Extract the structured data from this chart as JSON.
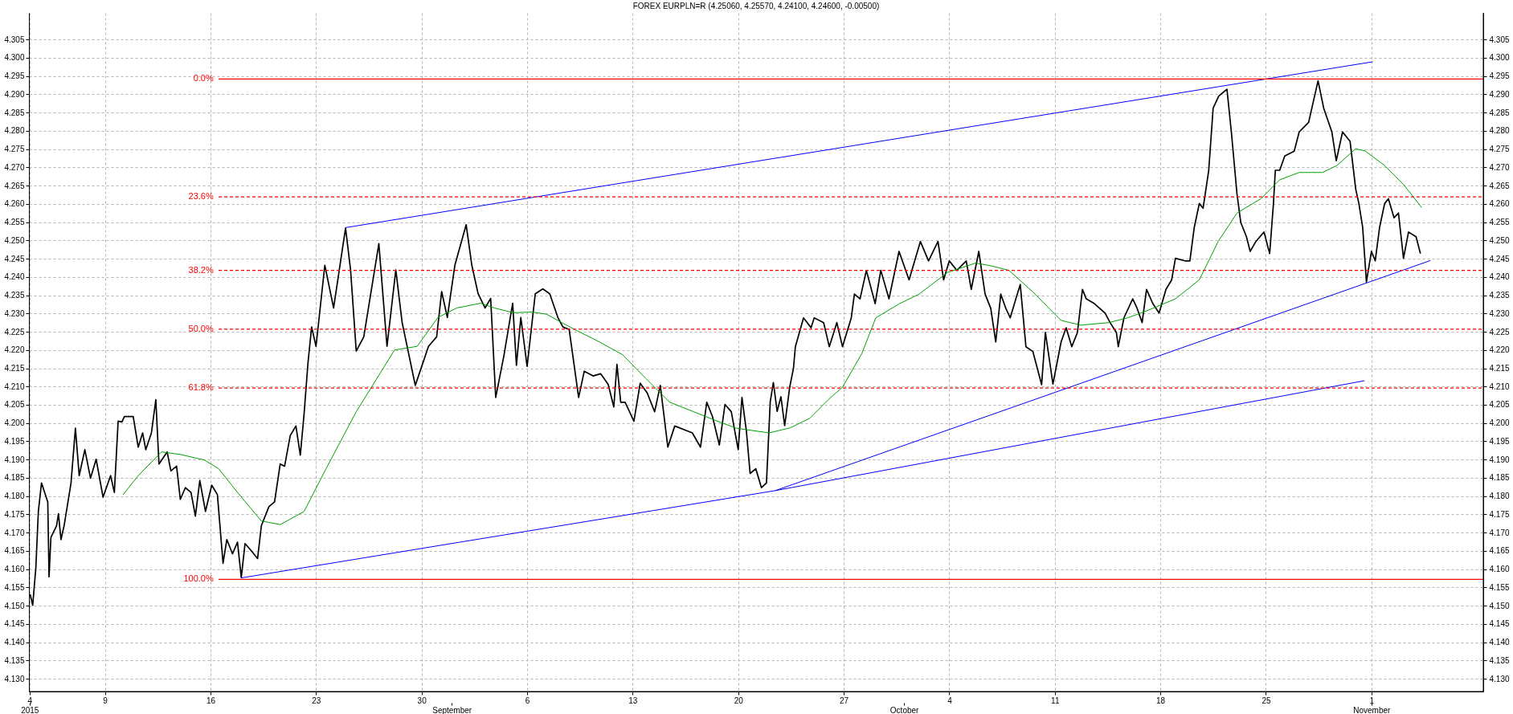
{
  "chart_data": {
    "type": "line",
    "title": "FOREX EURPLN=R (4.25060, 4.25570, 4.24100, 4.24600, -0.00500)",
    "xlim": [
      "2015-08-03T23:00",
      "2015-11-08T10:00"
    ],
    "xticks": [
      {
        "value": "2015-08-04T00:00",
        "label": "4"
      },
      {
        "value": "2015-08-09T00:00",
        "label": "9"
      },
      {
        "value": "2015-08-16T00:00",
        "label": "16"
      },
      {
        "value": "2015-08-23T00:00",
        "label": "23"
      },
      {
        "value": "2015-08-30T00:00",
        "label": "30"
      },
      {
        "value": "2015-09-06T00:00",
        "label": "6"
      },
      {
        "value": "2015-09-13T00:00",
        "label": "13"
      },
      {
        "value": "2015-09-20T00:00",
        "label": "20"
      },
      {
        "value": "2015-09-27T00:00",
        "label": "27"
      },
      {
        "value": "2015-10-04T00:00",
        "label": "4"
      },
      {
        "value": "2015-10-11T00:00",
        "label": "11"
      },
      {
        "value": "2015-10-18T00:00",
        "label": "18"
      },
      {
        "value": "2015-10-25T00:00",
        "label": "25"
      },
      {
        "value": "2015-11-01T00:00",
        "label": "1"
      }
    ],
    "x2lim": [
      "2015-08-03T23:00",
      "2015-11-08T10:00"
    ],
    "x2ticks": [
      {
        "value": "2015-08-04T00:00",
        "label": "2015"
      },
      {
        "value": "2015-09-01T00:00",
        "label": "September"
      },
      {
        "value": "2015-10-01T00:00",
        "label": "October"
      },
      {
        "value": "2015-11-01T00:00",
        "label": "November"
      }
    ],
    "ylim": [
      4.1265,
      4.3123
    ],
    "yticks": [
      {
        "value": 4.13,
        "label": "4.130"
      },
      {
        "value": 4.135,
        "label": "4.135"
      },
      {
        "value": 4.14,
        "label": "4.140"
      },
      {
        "value": 4.145,
        "label": "4.145"
      },
      {
        "value": 4.15,
        "label": "4.150"
      },
      {
        "value": 4.155,
        "label": "4.155"
      },
      {
        "value": 4.16,
        "label": "4.160"
      },
      {
        "value": 4.165,
        "label": "4.165"
      },
      {
        "value": 4.17,
        "label": "4.170"
      },
      {
        "value": 4.175,
        "label": "4.175"
      },
      {
        "value": 4.18,
        "label": "4.180"
      },
      {
        "value": 4.185,
        "label": "4.185"
      },
      {
        "value": 4.19,
        "label": "4.190"
      },
      {
        "value": 4.195,
        "label": "4.195"
      },
      {
        "value": 4.2,
        "label": "4.200"
      },
      {
        "value": 4.205,
        "label": "4.205"
      },
      {
        "value": 4.21,
        "label": "4.210"
      },
      {
        "value": 4.215,
        "label": "4.215"
      },
      {
        "value": 4.22,
        "label": "4.220"
      },
      {
        "value": 4.225,
        "label": "4.225"
      },
      {
        "value": 4.23,
        "label": "4.230"
      },
      {
        "value": 4.235,
        "label": "4.235"
      },
      {
        "value": 4.24,
        "label": "4.240"
      },
      {
        "value": 4.245,
        "label": "4.245"
      },
      {
        "value": 4.25,
        "label": "4.250"
      },
      {
        "value": 4.255,
        "label": "4.255"
      },
      {
        "value": 4.26,
        "label": "4.260"
      },
      {
        "value": 4.265,
        "label": "4.265"
      },
      {
        "value": 4.27,
        "label": "4.270"
      },
      {
        "value": 4.275,
        "label": "4.275"
      },
      {
        "value": 4.28,
        "label": "4.280"
      },
      {
        "value": 4.285,
        "label": "4.285"
      },
      {
        "value": 4.29,
        "label": "4.290"
      },
      {
        "value": 4.295,
        "label": "4.295"
      },
      {
        "value": 4.3,
        "label": "4.300"
      },
      {
        "value": 4.305,
        "label": "4.305"
      }
    ],
    "y2lim": [
      4.1265,
      4.3123
    ],
    "y2ticks": [
      {
        "value": 4.13,
        "label": "4.130"
      },
      {
        "value": 4.135,
        "label": "4.135"
      },
      {
        "value": 4.14,
        "label": "4.140"
      },
      {
        "value": 4.145,
        "label": "4.145"
      },
      {
        "value": 4.15,
        "label": "4.150"
      },
      {
        "value": 4.155,
        "label": "4.155"
      },
      {
        "value": 4.16,
        "label": "4.160"
      },
      {
        "value": 4.165,
        "label": "4.165"
      },
      {
        "value": 4.17,
        "label": "4.170"
      },
      {
        "value": 4.175,
        "label": "4.175"
      },
      {
        "value": 4.18,
        "label": "4.180"
      },
      {
        "value": 4.185,
        "label": "4.185"
      },
      {
        "value": 4.19,
        "label": "4.190"
      },
      {
        "value": 4.195,
        "label": "4.195"
      },
      {
        "value": 4.2,
        "label": "4.200"
      },
      {
        "value": 4.205,
        "label": "4.205"
      },
      {
        "value": 4.21,
        "label": "4.210"
      },
      {
        "value": 4.215,
        "label": "4.215"
      },
      {
        "value": 4.22,
        "label": "4.220"
      },
      {
        "value": 4.225,
        "label": "4.225"
      },
      {
        "value": 4.23,
        "label": "4.230"
      },
      {
        "value": 4.235,
        "label": "4.235"
      },
      {
        "value": 4.24,
        "label": "4.240"
      },
      {
        "value": 4.245,
        "label": "4.245"
      },
      {
        "value": 4.25,
        "label": "4.250"
      },
      {
        "value": 4.255,
        "label": "4.255"
      },
      {
        "value": 4.26,
        "label": "4.260"
      },
      {
        "value": 4.265,
        "label": "4.265"
      },
      {
        "value": 4.27,
        "label": "4.270"
      },
      {
        "value": 4.275,
        "label": "4.275"
      },
      {
        "value": 4.28,
        "label": "4.280"
      },
      {
        "value": 4.285,
        "label": "4.285"
      },
      {
        "value": 4.29,
        "label": "4.290"
      },
      {
        "value": 4.295,
        "label": "4.295"
      },
      {
        "value": 4.3,
        "label": "4.300"
      },
      {
        "value": 4.305,
        "label": "4.305"
      }
    ],
    "grid": true,
    "series": [
      {
        "type": "line",
        "color": "#000000",
        "x": [
          "2015-08-04T01:00",
          "2015-08-04T05:00",
          "2015-08-04T10:00",
          "2015-08-04T14:00",
          "2015-08-04T19:00",
          "2015-08-05T05:00",
          "2015-08-05T07:00",
          "2015-08-05T10:00",
          "2015-08-05T19:00",
          "2015-08-05T22:00",
          "2015-08-06T02:00",
          "2015-08-06T07:00",
          "2015-08-06T18:00",
          "2015-08-07T01:00",
          "2015-08-07T07:00",
          "2015-08-07T16:00",
          "2015-08-08T01:00",
          "2015-08-08T10:00",
          "2015-08-08T21:00",
          "2015-08-09T09:00",
          "2015-08-09T15:00",
          "2015-08-09T21:00",
          "2015-08-10T03:00",
          "2015-08-10T07:00",
          "2015-08-10T21:00",
          "2015-08-11T05:00",
          "2015-08-11T12:00",
          "2015-08-11T17:00",
          "2015-08-12T02:00",
          "2015-08-12T09:00",
          "2015-08-12T14:00",
          "2015-08-13T03:00",
          "2015-08-13T09:00",
          "2015-08-13T18:00",
          "2015-08-14T00:00",
          "2015-08-14T08:00",
          "2015-08-14T17:00",
          "2015-08-15T00:00",
          "2015-08-15T07:00",
          "2015-08-15T16:00",
          "2015-08-16T02:00",
          "2015-08-16T11:00",
          "2015-08-16T20:00",
          "2015-08-17T02:00",
          "2015-08-17T11:00",
          "2015-08-17T19:00",
          "2015-08-18T01:00",
          "2015-08-18T07:00",
          "2015-08-18T18:00",
          "2015-08-19T03:00",
          "2015-08-19T09:00",
          "2015-08-19T21:00",
          "2015-08-20T06:00",
          "2015-08-20T15:00",
          "2015-08-20T22:00",
          "2015-08-21T07:00",
          "2015-08-21T16:00",
          "2015-08-21T23:00",
          "2015-08-22T05:00",
          "2015-08-22T11:00",
          "2015-08-22T17:00",
          "2015-08-23T00:00",
          "2015-08-23T14:00",
          "2015-08-24T04:00",
          "2015-08-24T23:00",
          "2015-08-25T07:00",
          "2015-08-25T16:00",
          "2015-08-26T04:00",
          "2015-08-27T04:00",
          "2015-08-27T17:00",
          "2015-08-28T07:00",
          "2015-08-28T17:00",
          "2015-08-29T14:00",
          "2015-08-30T11:00",
          "2015-08-31T00:00",
          "2015-08-31T08:00",
          "2015-08-31T17:00",
          "2015-09-01T05:00",
          "2015-09-01T23:00",
          "2015-09-02T08:00",
          "2015-09-02T18:00",
          "2015-09-03T05:00",
          "2015-09-03T14:00",
          "2015-09-03T22:00",
          "2015-09-04T11:00",
          "2015-09-05T01:00",
          "2015-09-05T07:00",
          "2015-09-05T14:00",
          "2015-09-06T00:00",
          "2015-09-06T13:00",
          "2015-09-07T01:00",
          "2015-09-07T12:00",
          "2015-09-08T01:00",
          "2015-09-08T09:00",
          "2015-09-08T19:00",
          "2015-09-09T10:00",
          "2015-09-09T19:00",
          "2015-09-10T09:00",
          "2015-09-10T21:00",
          "2015-09-11T09:00",
          "2015-09-11T18:00",
          "2015-09-11T23:00",
          "2015-09-12T05:00",
          "2015-09-12T12:00",
          "2015-09-13T02:00",
          "2015-09-13T12:00",
          "2015-09-13T23:00",
          "2015-09-14T11:00",
          "2015-09-14T20:00",
          "2015-09-15T08:00",
          "2015-09-15T19:00",
          "2015-09-16T14:00",
          "2015-09-16T23:00",
          "2015-09-17T12:00",
          "2015-09-17T22:00",
          "2015-09-18T07:00",
          "2015-09-18T18:00",
          "2015-09-19T03:00",
          "2015-09-19T13:00",
          "2015-09-20T00:00",
          "2015-09-20T06:00",
          "2015-09-20T13:00",
          "2015-09-20T19:00",
          "2015-09-21T04:00",
          "2015-09-21T13:00",
          "2015-09-21T21:00",
          "2015-09-22T03:00",
          "2015-09-22T08:00",
          "2015-09-22T14:00",
          "2015-09-22T20:00",
          "2015-09-23T02:00",
          "2015-09-23T10:00",
          "2015-09-23T16:00",
          "2015-09-23T19:00",
          "2015-09-24T08:00",
          "2015-09-24T20:00",
          "2015-09-25T01:00",
          "2015-09-25T16:00",
          "2015-09-26T01:00",
          "2015-09-26T13:00",
          "2015-09-26T22:00",
          "2015-09-27T12:00",
          "2015-09-27T17:00",
          "2015-09-28T02:00",
          "2015-09-28T12:00",
          "2015-09-29T02:00",
          "2015-09-29T11:00",
          "2015-09-30T00:00",
          "2015-09-30T16:00",
          "2015-10-01T08:00",
          "2015-10-02T02:00",
          "2015-10-02T15:00",
          "2015-10-03T06:00",
          "2015-10-03T15:00",
          "2015-10-04T00:00",
          "2015-10-04T12:00",
          "2015-10-05T03:00",
          "2015-10-05T11:00",
          "2015-10-05T23:00",
          "2015-10-06T09:00",
          "2015-10-06T18:00",
          "2015-10-07T02:00",
          "2015-10-07T10:00",
          "2015-10-07T18:00",
          "2015-10-08T01:00",
          "2015-10-08T10:00",
          "2015-10-08T17:00",
          "2015-10-09T02:00",
          "2015-10-09T13:00",
          "2015-10-10T03:00",
          "2015-10-10T09:00",
          "2015-10-10T21:00",
          "2015-10-11T10:00",
          "2015-10-11T18:00",
          "2015-10-12T03:00",
          "2015-10-12T12:00",
          "2015-10-12T20:00",
          "2015-10-13T02:00",
          "2015-10-13T15:00",
          "2015-10-14T08:00",
          "2015-10-14T16:00",
          "2015-10-15T02:00",
          "2015-10-15T05:00",
          "2015-10-15T14:00",
          "2015-10-16T04:00",
          "2015-10-16T11:00",
          "2015-10-16T19:00",
          "2015-10-17T02:00",
          "2015-10-17T12:00",
          "2015-10-17T22:00",
          "2015-10-18T09:00",
          "2015-10-18T18:00",
          "2015-10-19T00:00",
          "2015-10-19T15:00",
          "2015-10-19T23:00",
          "2015-10-20T06:00",
          "2015-10-20T14:00",
          "2015-10-20T20:00",
          "2015-10-21T05:00",
          "2015-10-21T12:00",
          "2015-10-21T21:00",
          "2015-10-22T10:00",
          "2015-10-22T17:00",
          "2015-10-23T02:00",
          "2015-10-23T08:00",
          "2015-10-23T17:00",
          "2015-10-23T23:00",
          "2015-10-24T08:00",
          "2015-10-24T21:00",
          "2015-10-25T06:00",
          "2015-10-25T12:00",
          "2015-10-25T15:00",
          "2015-10-25T22:00",
          "2015-10-26T06:00",
          "2015-10-26T21:00",
          "2015-10-27T05:00",
          "2015-10-27T20:00",
          "2015-10-28T11:00",
          "2015-10-28T20:00",
          "2015-10-29T09:00",
          "2015-10-29T16:00",
          "2015-10-30T02:00",
          "2015-10-30T14:00",
          "2015-10-30T23:00",
          "2015-10-31T04:00",
          "2015-10-31T10:00",
          "2015-10-31T16:00",
          "2015-11-01T00:00",
          "2015-11-01T06:00",
          "2015-11-01T13:00",
          "2015-11-01T21:00",
          "2015-11-02T03:00",
          "2015-11-02T12:00",
          "2015-11-02T19:00",
          "2015-11-03T03:00",
          "2015-11-03T11:00",
          "2015-11-03T23:00",
          "2015-11-04T06:00"
        ],
        "values": [
          4.1531,
          4.1501,
          4.1603,
          4.1758,
          4.1836,
          4.1784,
          4.1579,
          4.1687,
          4.1719,
          4.1752,
          4.1681,
          4.1719,
          4.1836,
          4.1986,
          4.1856,
          4.1927,
          4.1849,
          4.1901,
          4.1797,
          4.1856,
          4.181,
          4.2005,
          4.2003,
          4.2018,
          4.2018,
          4.1934,
          4.1973,
          4.1927,
          4.1973,
          4.2064,
          4.1888,
          4.1921,
          4.1869,
          4.1882,
          4.1791,
          4.1823,
          4.181,
          4.1745,
          4.1843,
          4.1758,
          4.183,
          4.1804,
          4.1616,
          4.1681,
          4.1642,
          4.1674,
          4.1577,
          4.167,
          4.1648,
          4.1629,
          4.1719,
          4.1771,
          4.1784,
          4.1888,
          4.1882,
          4.1966,
          4.1992,
          4.1912,
          4.2025,
          4.2161,
          4.2263,
          4.221,
          4.2432,
          4.2315,
          4.2534,
          4.2419,
          4.2197,
          4.2236,
          4.2491,
          4.221,
          4.2419,
          4.2276,
          4.2103,
          4.221,
          4.2236,
          4.236,
          4.2289,
          4.2432,
          4.2543,
          4.2432,
          4.2354,
          4.2315,
          4.2341,
          4.207,
          4.2184,
          4.2328,
          4.2158,
          4.2289,
          4.2155,
          4.2354,
          4.2367,
          4.2354,
          4.2289,
          4.2263,
          4.2256,
          4.207,
          4.2142,
          4.2129,
          4.2135,
          4.2106,
          4.2044,
          4.2161,
          4.2057,
          4.2057,
          4.2005,
          4.2109,
          4.2083,
          4.2031,
          4.2103,
          4.1934,
          4.1992,
          4.1979,
          4.1973,
          4.1934,
          4.2057,
          4.2018,
          4.194,
          4.2051,
          4.2031,
          4.1927,
          4.207,
          4.1979,
          4.1862,
          4.1875,
          4.1823,
          4.1836,
          4.2058,
          4.2111,
          4.2032,
          4.2072,
          4.1993,
          4.2098,
          4.215,
          4.2209,
          4.2288,
          4.2261,
          4.2288,
          4.2275,
          4.2209,
          4.2275,
          4.2209,
          4.2288,
          4.2353,
          4.234,
          4.2418,
          4.2327,
          4.2418,
          4.234,
          4.247,
          4.2392,
          4.2497,
          4.2444,
          4.2497,
          4.2392,
          4.2444,
          4.2418,
          4.2444,
          4.2366,
          4.247,
          4.2353,
          4.2314,
          4.2222,
          4.2353,
          4.2314,
          4.2288,
          4.234,
          4.2379,
          4.2209,
          4.2196,
          4.2105,
          4.2248,
          4.2107,
          4.2222,
          4.2261,
          4.2209,
          4.2248,
          4.2366,
          4.234,
          4.2327,
          4.2301,
          4.2275,
          4.2248,
          4.2209,
          4.2288,
          4.234,
          4.2314,
          4.2275,
          4.2366,
          4.2327,
          4.2301,
          4.2366,
          4.2392,
          4.2451,
          4.2444,
          4.2444,
          4.2536,
          4.2601,
          4.2588,
          4.2692,
          4.2862,
          4.2895,
          4.2914,
          4.2797,
          4.2627,
          4.2549,
          4.251,
          4.247,
          4.2497,
          4.2523,
          4.2464,
          4.2601,
          4.2692,
          4.2692,
          4.2731,
          4.2744,
          4.2797,
          4.2823,
          4.2937,
          4.2862,
          4.2797,
          4.2718,
          4.2797,
          4.2771,
          4.264,
          4.2601,
          4.2536,
          4.2386,
          4.247,
          4.2444,
          4.2536,
          4.2601,
          4.2614,
          4.2562,
          4.2575,
          4.2451,
          4.2523,
          4.251,
          4.2464
        ]
      },
      {
        "type": "line",
        "color": "#00a000",
        "x": [
          "2015-08-10T05:00",
          "2015-08-11T05:00",
          "2015-08-12T18:00",
          "2015-08-14T00:00",
          "2015-08-15T14:00",
          "2015-08-16T13:00",
          "2015-08-17T19:00",
          "2015-08-19T09:00",
          "2015-08-20T15:00",
          "2015-08-22T05:00",
          "2015-08-23T16:00",
          "2015-08-25T16:00",
          "2015-08-28T05:00",
          "2015-08-29T17:00",
          "2015-08-31T02:00",
          "2015-09-01T08:00",
          "2015-09-02T22:00",
          "2015-09-03T20:00",
          "2015-09-05T02:00",
          "2015-09-06T08:00",
          "2015-09-07T07:00",
          "2015-09-08T06:00",
          "2015-09-09T04:00",
          "2015-09-10T18:00",
          "2015-09-12T08:00",
          "2015-09-13T21:00",
          "2015-09-15T11:00",
          "2015-09-17T01:00",
          "2015-09-18T15:00",
          "2015-09-19T21:00",
          "2015-09-22T01:00",
          "2015-09-23T11:00",
          "2015-09-24T18:00",
          "2015-09-26T00:00",
          "2015-09-26T22:00",
          "2015-09-28T05:00",
          "2015-09-29T03:00",
          "2015-09-30T17:00",
          "2015-10-02T00:00",
          "2015-10-03T21:00",
          "2015-10-05T18:00",
          "2015-10-06T17:00",
          "2015-10-07T23:00",
          "2015-10-09T13:00",
          "2015-10-11T10:00",
          "2015-10-12T17:00",
          "2015-10-14T14:00",
          "2015-10-15T20:00",
          "2015-10-17T02:00",
          "2015-10-19T00:00",
          "2015-10-20T14:00",
          "2015-10-21T20:00",
          "2015-10-23T02:00",
          "2015-10-24T16:00",
          "2015-10-25T22:00",
          "2015-10-27T05:00",
          "2015-10-28T18:00",
          "2015-10-29T17:00",
          "2015-10-30T23:00",
          "2015-10-31T14:00",
          "2015-11-01T21:00",
          "2015-11-03T03:00",
          "2015-11-04T08:00"
        ],
        "values": [
          4.1804,
          4.1856,
          4.1921,
          4.1914,
          4.1899,
          4.1875,
          4.181,
          4.1732,
          4.1722,
          4.1758,
          4.1875,
          4.2031,
          4.22,
          4.221,
          4.2289,
          4.2315,
          4.2328,
          4.2315,
          4.2302,
          4.2304,
          4.2298,
          4.2276,
          4.2256,
          4.2223,
          4.2187,
          4.2122,
          4.2057,
          4.2031,
          4.2005,
          4.1986,
          4.1973,
          4.1987,
          4.2013,
          4.2065,
          4.2098,
          4.2191,
          4.2288,
          4.2327,
          4.2353,
          4.2412,
          4.2438,
          4.2431,
          4.2418,
          4.2359,
          4.2281,
          4.2268,
          4.2275,
          4.2288,
          4.2307,
          4.234,
          4.2392,
          4.2497,
          4.2575,
          4.2614,
          4.2666,
          4.2686,
          4.2686,
          4.2705,
          4.2751,
          4.2745,
          4.2705,
          4.2653,
          4.259
        ]
      },
      {
        "type": "line",
        "color": "#0000ff",
        "x": [
          "2015-08-24T23:00",
          "2015-11-01T02:00"
        ],
        "values": [
          4.2535,
          4.2989
        ]
      },
      {
        "type": "line",
        "color": "#0000ff",
        "x": [
          "2015-08-18T01:00",
          "2015-09-22T11:00",
          "2015-11-04T22:00"
        ],
        "values": [
          4.1576,
          4.1815,
          4.2445
        ]
      },
      {
        "type": "line",
        "color": "#0000ff",
        "x": [
          "2015-09-22T11:00",
          "2015-10-31T13:00"
        ],
        "values": [
          4.1815,
          4.2116
        ]
      }
    ],
    "ref_lines": [
      {
        "axis": "y",
        "value": 4.2942,
        "color": "#ff0000",
        "line_style": "solid"
      },
      {
        "axis": "y",
        "value": 4.2619,
        "color": "#ff0000",
        "line_style": "dashed"
      },
      {
        "axis": "y",
        "value": 4.2418,
        "color": "#ff0000",
        "line_style": "dashed"
      },
      {
        "axis": "y",
        "value": 4.2257,
        "color": "#ff0000",
        "line_style": "dashed"
      },
      {
        "axis": "y",
        "value": 4.2096,
        "color": "#ff0000",
        "line_style": "dashed"
      },
      {
        "axis": "y",
        "value": 4.1572,
        "color": "#ff0000",
        "line_style": "solid"
      }
    ],
    "annotations": [
      {
        "text": "0.0%",
        "x": "2015-08-16T10:00",
        "y": 4.2942
      },
      {
        "text": "23.6%",
        "x": "2015-08-16T10:00",
        "y": 4.2619
      },
      {
        "text": "38.2%",
        "x": "2015-08-16T10:00",
        "y": 4.2418
      },
      {
        "text": "50.0%",
        "x": "2015-08-16T10:00",
        "y": 4.2257
      },
      {
        "text": "61.8%",
        "x": "2015-08-16T10:00",
        "y": 4.2096
      },
      {
        "text": "100.0%",
        "x": "2015-08-16T10:00",
        "y": 4.1572
      }
    ]
  }
}
